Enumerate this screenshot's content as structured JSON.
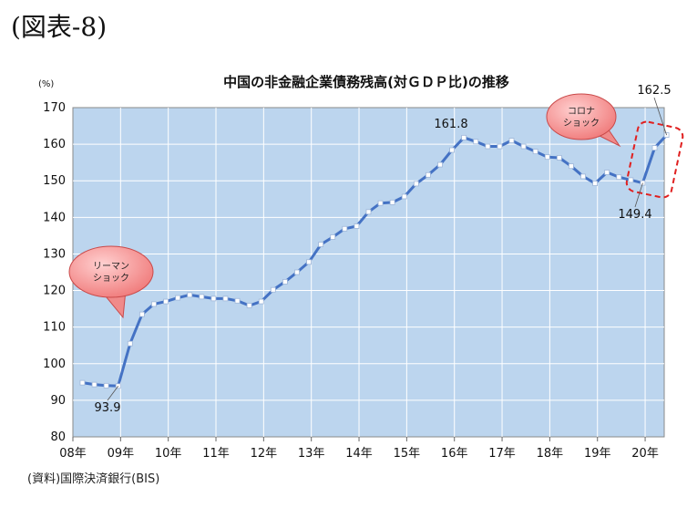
{
  "figure_label": "(図表-8)",
  "source": "(資料)国際決済銀行(BIS)",
  "chart_data": {
    "type": "line",
    "title": "中国の非金融企業債務残高(対ＧＤＰ比)の推移",
    "ylabel": "(%)",
    "xlabel": "",
    "ylim": [
      80,
      170
    ],
    "yticks": [
      80,
      90,
      100,
      110,
      120,
      130,
      140,
      150,
      160,
      170
    ],
    "xticks": [
      "08年",
      "09年",
      "10年",
      "11年",
      "12年",
      "13年",
      "14年",
      "15年",
      "16年",
      "17年",
      "18年",
      "19年",
      "20年"
    ],
    "grid": true,
    "plot_background": "#bcd5ee",
    "line_color": "#4472c4",
    "series": [
      {
        "values": [
          94.8,
          94.3,
          94.0,
          93.9,
          105.5,
          113.5,
          116.3,
          117.0,
          118.0,
          118.8,
          118.3,
          117.8,
          117.8,
          117.2,
          115.9,
          117.0,
          120.2,
          122.4,
          125.0,
          127.8,
          132.6,
          134.6,
          136.9,
          137.6,
          141.5,
          143.9,
          144.1,
          145.7,
          149.2,
          151.6,
          154.4,
          158.4,
          161.8,
          160.7,
          159.4,
          159.4,
          161.0,
          159.4,
          158.0,
          156.5,
          156.3,
          154.0,
          151.2,
          149.3,
          152.3,
          151.0,
          150.2,
          149.4,
          159.0,
          162.5
        ]
      }
    ],
    "annotations": [
      {
        "id": "low_2008",
        "text": "93.9"
      },
      {
        "id": "peak_2016",
        "text": "161.8"
      },
      {
        "id": "pre_corona",
        "text": "149.4"
      },
      {
        "id": "latest",
        "text": "162.5"
      }
    ],
    "callouts": [
      {
        "id": "lehman",
        "lines": [
          "リーマン",
          "ショック"
        ]
      },
      {
        "id": "corona",
        "lines": [
          "コロナ",
          "ショック"
        ]
      }
    ]
  }
}
